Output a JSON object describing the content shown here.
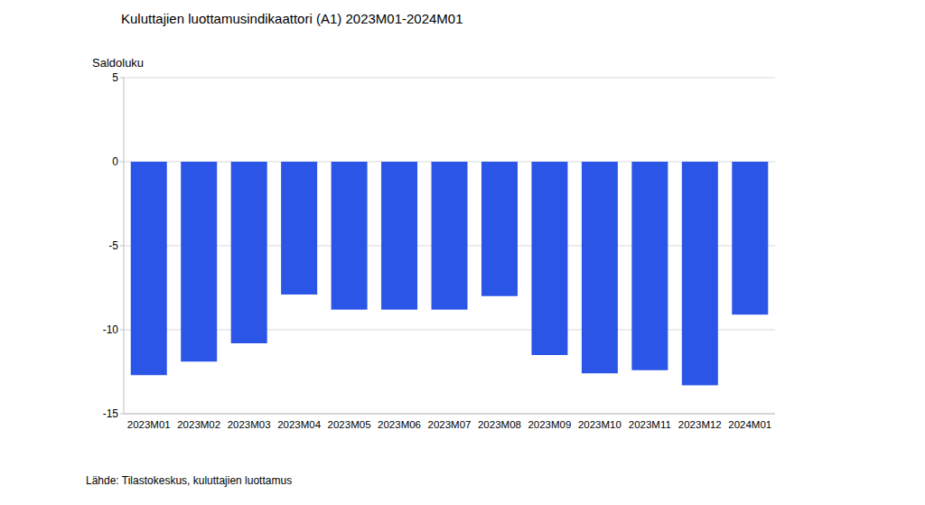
{
  "chart_data": {
    "type": "bar",
    "title": "Kuluttajien luottamusindikaattori (A1) 2023M01-2024M01",
    "y_label": "Saldoluku",
    "source": "Lähde: Tilastokeskus, kuluttajien luottamus",
    "categories": [
      "2023M01",
      "2023M02",
      "2023M03",
      "2023M04",
      "2023M05",
      "2023M06",
      "2023M07",
      "2023M08",
      "2023M09",
      "2023M10",
      "2023M11",
      "2023M12",
      "2024M01"
    ],
    "values": [
      -12.7,
      -11.9,
      -10.8,
      -7.9,
      -8.8,
      -8.8,
      -8.8,
      -8.0,
      -11.5,
      -12.6,
      -12.4,
      -13.3,
      -9.1
    ],
    "color": "#2b55e6",
    "ylim": [
      -15,
      5
    ],
    "yticks": [
      -15,
      -10,
      -5,
      0,
      5
    ],
    "grid": true
  }
}
